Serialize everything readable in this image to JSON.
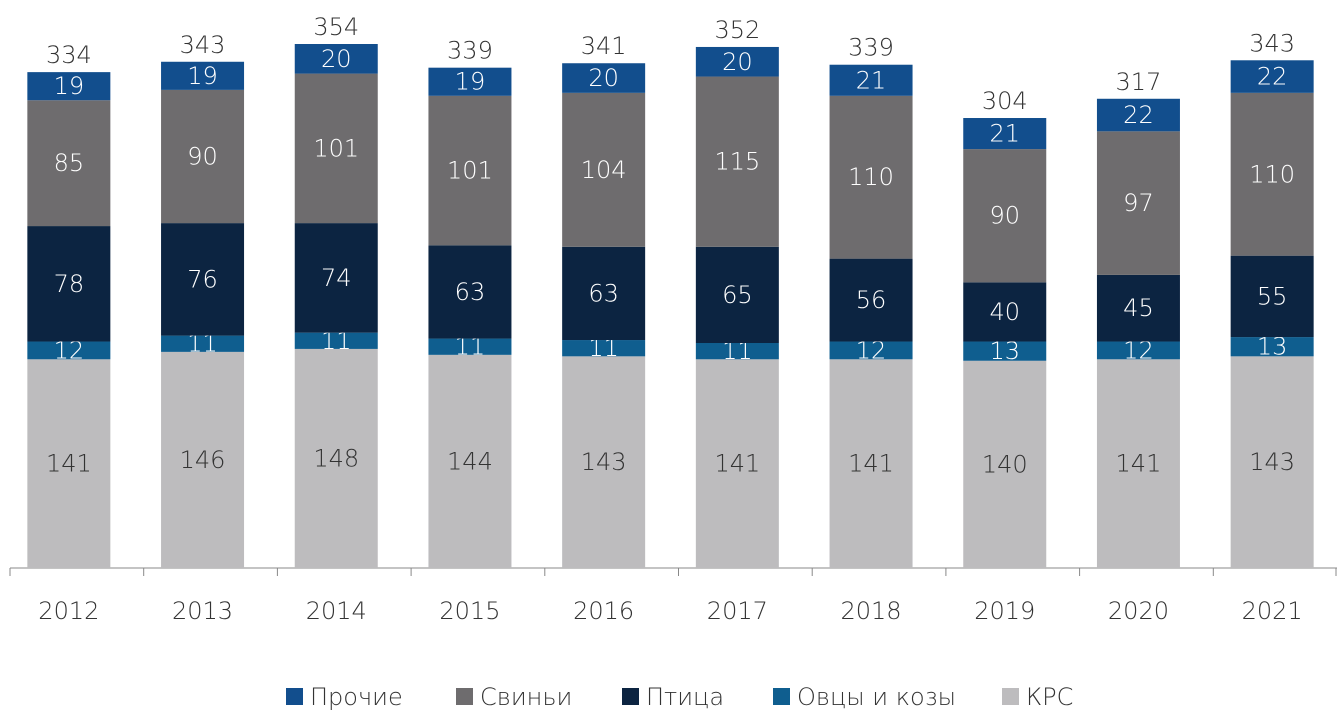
{
  "chart_data": {
    "type": "stacked_bar",
    "categories": [
      "2012",
      "2013",
      "2014",
      "2015",
      "2016",
      "2017",
      "2018",
      "2019",
      "2020",
      "2021"
    ],
    "series": [
      {
        "name": "Прочие",
        "color": "#124e8d",
        "values": [
          19,
          19,
          20,
          19,
          20,
          20,
          21,
          21,
          22,
          22
        ]
      },
      {
        "name": "Свиньи",
        "color": "#6e6c6e",
        "values": [
          85,
          90,
          101,
          101,
          104,
          115,
          110,
          90,
          97,
          110
        ]
      },
      {
        "name": "Птица",
        "color": "#0c2441",
        "values": [
          78,
          76,
          74,
          63,
          63,
          65,
          56,
          40,
          45,
          55
        ]
      },
      {
        "name": "Овцы и козы",
        "color": "#0f5e8f",
        "values": [
          12,
          11,
          11,
          11,
          11,
          11,
          12,
          13,
          12,
          13
        ]
      },
      {
        "name": "КРС",
        "color": "#bdbcbe",
        "values": [
          141,
          146,
          148,
          144,
          143,
          141,
          141,
          140,
          141,
          143
        ]
      }
    ],
    "totals": [
      334,
      343,
      354,
      339,
      341,
      352,
      339,
      304,
      317,
      343
    ]
  }
}
